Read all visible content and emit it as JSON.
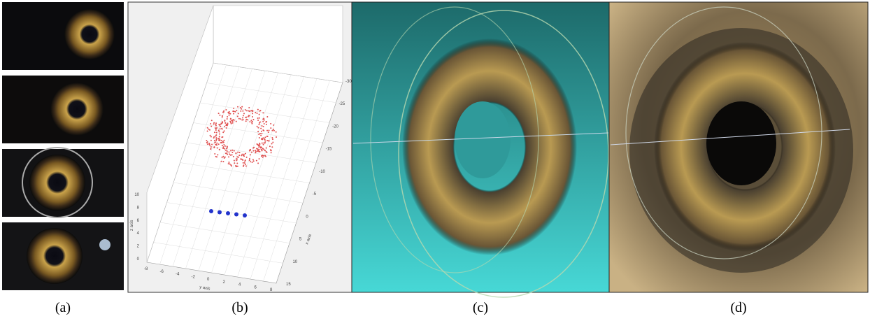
{
  "panels": [
    {
      "label": "(a)"
    },
    {
      "label": "(b)",
      "plot": {
        "x_axis_label": "x axis",
        "y_axis_label": "y axis",
        "z_axis_label": "z axis",
        "x_ticks": [
          -30,
          -25,
          -20,
          -15,
          -10,
          -5,
          0,
          5,
          10,
          15
        ],
        "y_ticks": [
          -8,
          -6,
          -4,
          -2,
          0,
          2,
          4,
          6,
          8
        ],
        "z_ticks": [
          10,
          8,
          6,
          4,
          2,
          0
        ]
      }
    },
    {
      "label": "(c)"
    },
    {
      "label": "(d)"
    }
  ]
}
